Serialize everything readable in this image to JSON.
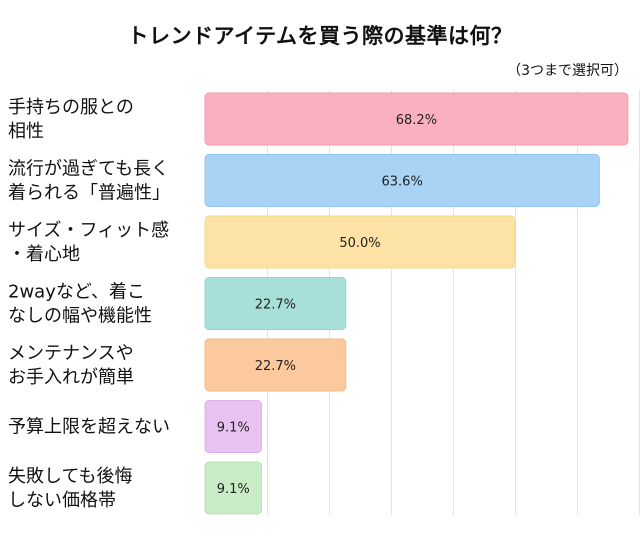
{
  "chart_data": {
    "type": "bar",
    "orientation": "horizontal",
    "title": "トレンドアイテムを買う際の基準は何？",
    "subtitle": "（3つまで選択可）",
    "categories": [
      [
        "手持ちの服との",
        "相性"
      ],
      [
        "流行が過ぎても長く",
        "着られる「普遍性」"
      ],
      [
        "サイズ・フィット感",
        "・着心地"
      ],
      [
        "2wayなど、着こ",
        "なしの幅や機能性"
      ],
      [
        "メンテナンスや",
        "お手入れが簡単"
      ],
      [
        "予算上限を超えない"
      ],
      [
        "失敗しても後悔",
        "しない価格帯"
      ]
    ],
    "values": [
      68.2,
      63.6,
      50.0,
      22.7,
      22.7,
      9.1,
      9.1
    ],
    "value_labels": [
      "68.2%",
      "63.6%",
      "50.0%",
      "22.7%",
      "22.7%",
      "9.1%",
      "9.1%"
    ],
    "colors": [
      "#fbb0c0",
      "#a9d3f5",
      "#fde2a6",
      "#a8e0d9",
      "#fcc89e",
      "#e8c3f2",
      "#c9ecc7"
    ],
    "border_colors": [
      "#f39bb0",
      "#93c4ee",
      "#f8d58a",
      "#93d5cc",
      "#f8b884",
      "#dcaeea",
      "#b4e2b1"
    ],
    "xlim": [
      0,
      70
    ],
    "gridlines": [
      10,
      20,
      30,
      40,
      50,
      60,
      70
    ],
    "grid": true,
    "legend": "none"
  }
}
